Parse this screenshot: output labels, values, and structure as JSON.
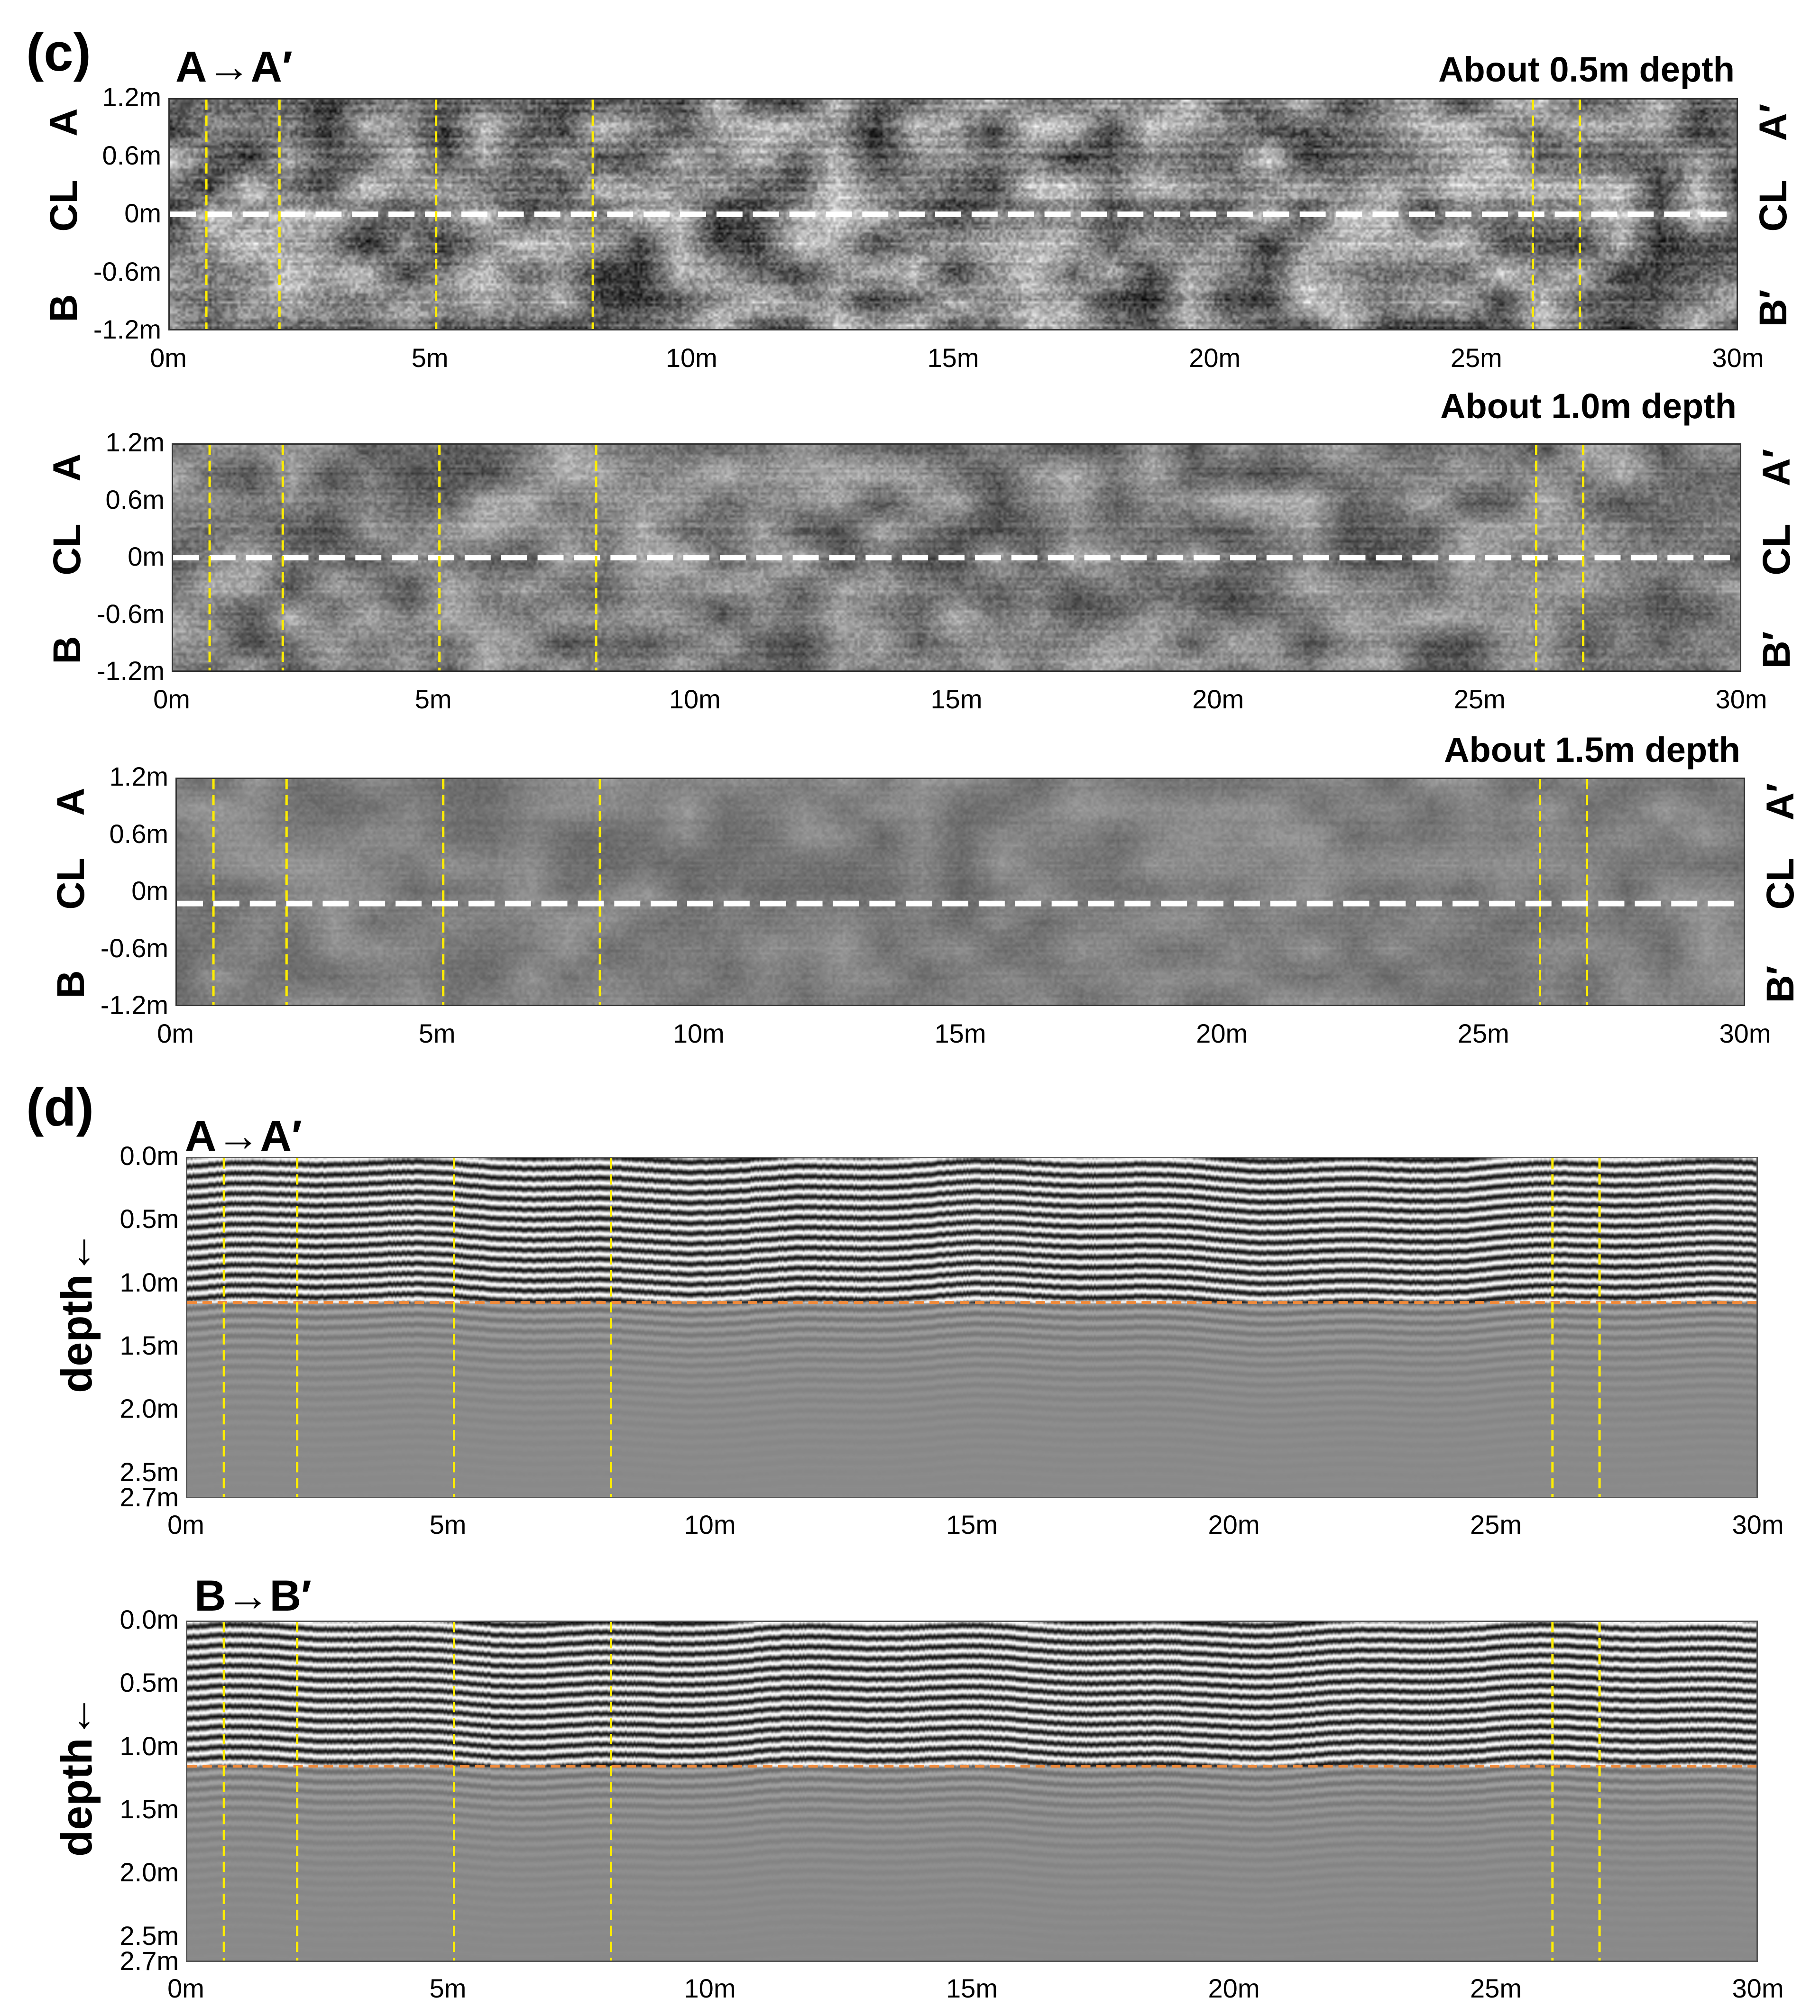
{
  "panel_c": {
    "letter": "(c)",
    "profile": "A→A′",
    "slices": [
      {
        "title": "About  0.5m depth",
        "texture": "strong"
      },
      {
        "title": "About  1.0m depth",
        "texture": "medium"
      },
      {
        "title": "About  1.5m depth",
        "texture": "weak"
      }
    ],
    "y_ticks": [
      "1.2m",
      "0.6m",
      "0m",
      "-0.6m",
      "-1.2m"
    ],
    "left_labels": [
      "A",
      "CL",
      "B"
    ],
    "right_labels": [
      "A′",
      "CL",
      "B′"
    ]
  },
  "panel_d": {
    "letter": "(d)",
    "sections": [
      {
        "profile": "A→A′"
      },
      {
        "profile": "B→B′"
      }
    ],
    "y_ticks": [
      "0.0m",
      "0.5m",
      "1.0m",
      "1.5m",
      "2.0m",
      "2.5m",
      "2.7m"
    ],
    "y_tick_depths": [
      0.0,
      0.5,
      1.0,
      1.5,
      2.0,
      2.5,
      2.7
    ],
    "y_title": "depth←",
    "orange_line_depth_m": 1.15
  },
  "x_ticks": [
    "0m",
    "5m",
    "10m",
    "15m",
    "20m",
    "25m",
    "30m"
  ],
  "yellow_markers_m": [
    0.7,
    2.1,
    5.1,
    8.1,
    26.1,
    27.0
  ],
  "colors": {
    "marker": "#ffee00",
    "centerline": "#ffffff",
    "interface": "#f08a3a",
    "background_gray": "#8a8a8a"
  }
}
